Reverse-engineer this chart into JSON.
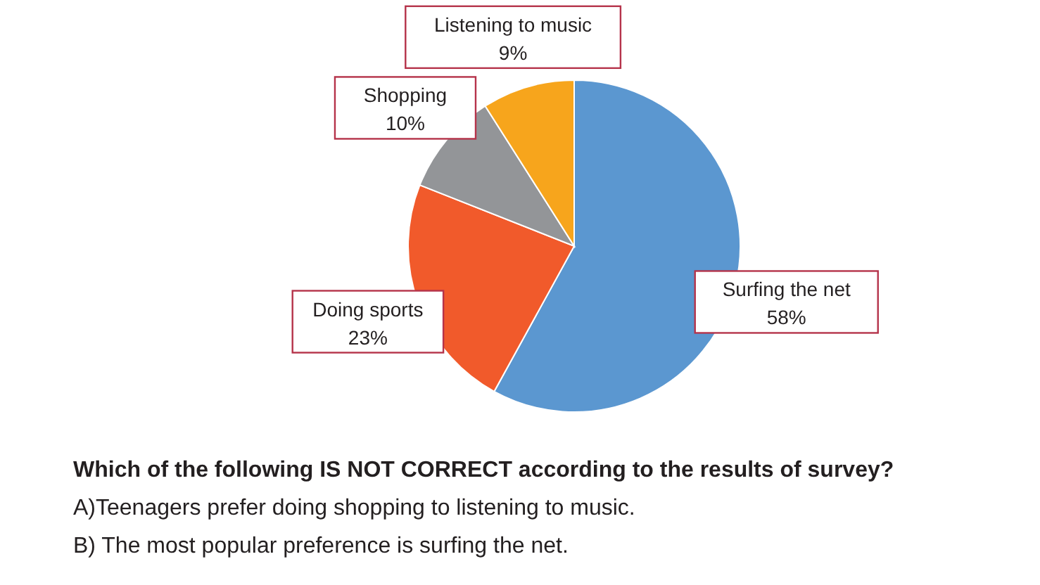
{
  "chart_data": {
    "type": "pie",
    "categories": [
      "Surfing the net",
      "Doing sports",
      "Shopping",
      "Listening to music"
    ],
    "values": [
      58,
      23,
      10,
      9
    ],
    "value_labels": [
      "58%",
      "23%",
      "10%",
      "9%"
    ],
    "colors": [
      "#5b97d0",
      "#f15a2b",
      "#939598",
      "#f7a51c"
    ],
    "annotations": [
      "Which of the following IS NOT CORRECT according to the results of survey?",
      "A)Teenagers prefer doing shopping to listening to music.",
      "B) The most popular preference is surfing the net."
    ]
  }
}
